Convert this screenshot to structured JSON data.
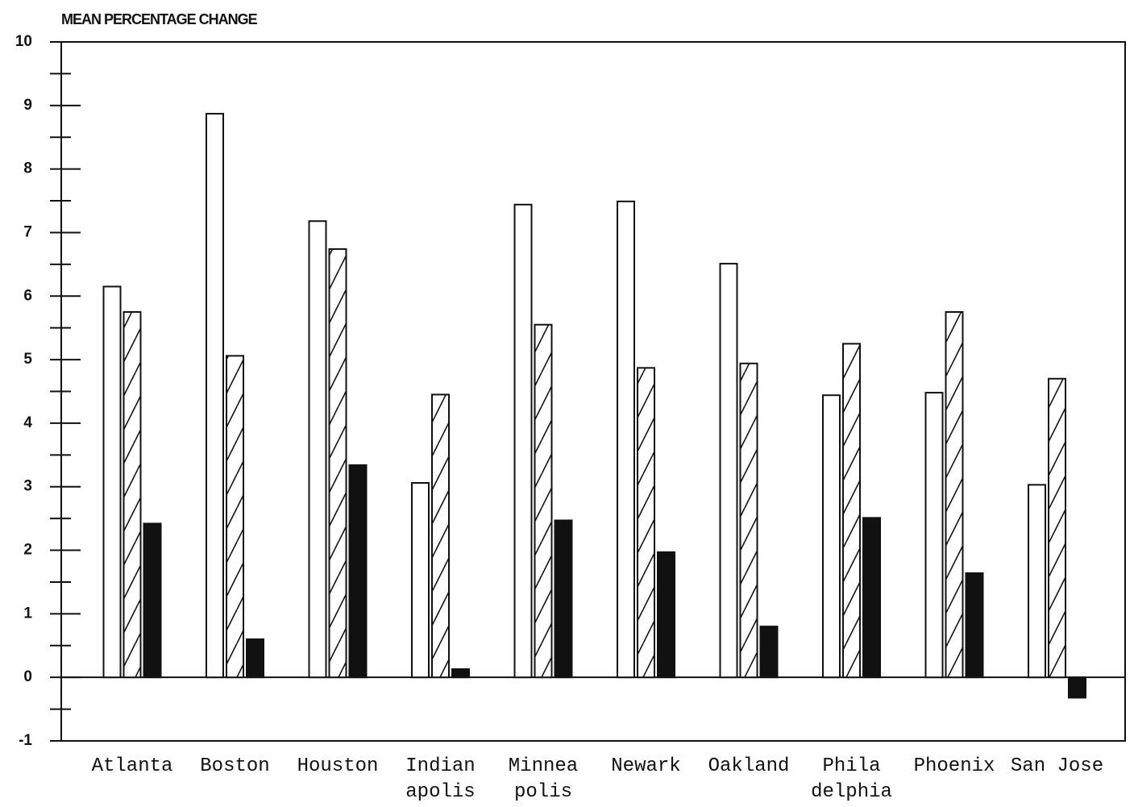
{
  "chart_data": {
    "type": "bar",
    "title": "MEAN PERCENTAGE CHANGE",
    "categories": [
      "Atlanta",
      "Boston",
      "Houston",
      "Indian\napolis",
      "Minnea\npolis",
      "Newark",
      "Oakland",
      "Phila\ndelphia",
      "Phoenix",
      "San Jose"
    ],
    "series": [
      {
        "color": "#ffffff",
        "values": [
          6.15,
          8.87,
          7.18,
          3.06,
          7.44,
          7.49,
          6.51,
          4.44,
          4.48,
          3.03
        ]
      },
      {
        "color": "#ffffff",
        "hatch": true,
        "values": [
          5.75,
          5.06,
          6.74,
          4.45,
          5.55,
          4.87,
          4.94,
          5.25,
          5.75,
          4.7
        ]
      },
      {
        "color": "#111111",
        "values": [
          2.42,
          0.6,
          3.34,
          0.13,
          2.47,
          1.97,
          0.8,
          2.51,
          1.64,
          -0.32
        ]
      }
    ],
    "ylim": [
      -1,
      10
    ],
    "yticks": [
      -1,
      0,
      1,
      2,
      3,
      4,
      5,
      6,
      7,
      8,
      9,
      10
    ],
    "minor_yticks": [
      -0.5,
      0.5,
      1.5,
      2.5,
      3.5,
      4.5,
      5.5,
      6.5,
      7.5,
      8.5,
      9.5
    ],
    "zero_line": true
  }
}
